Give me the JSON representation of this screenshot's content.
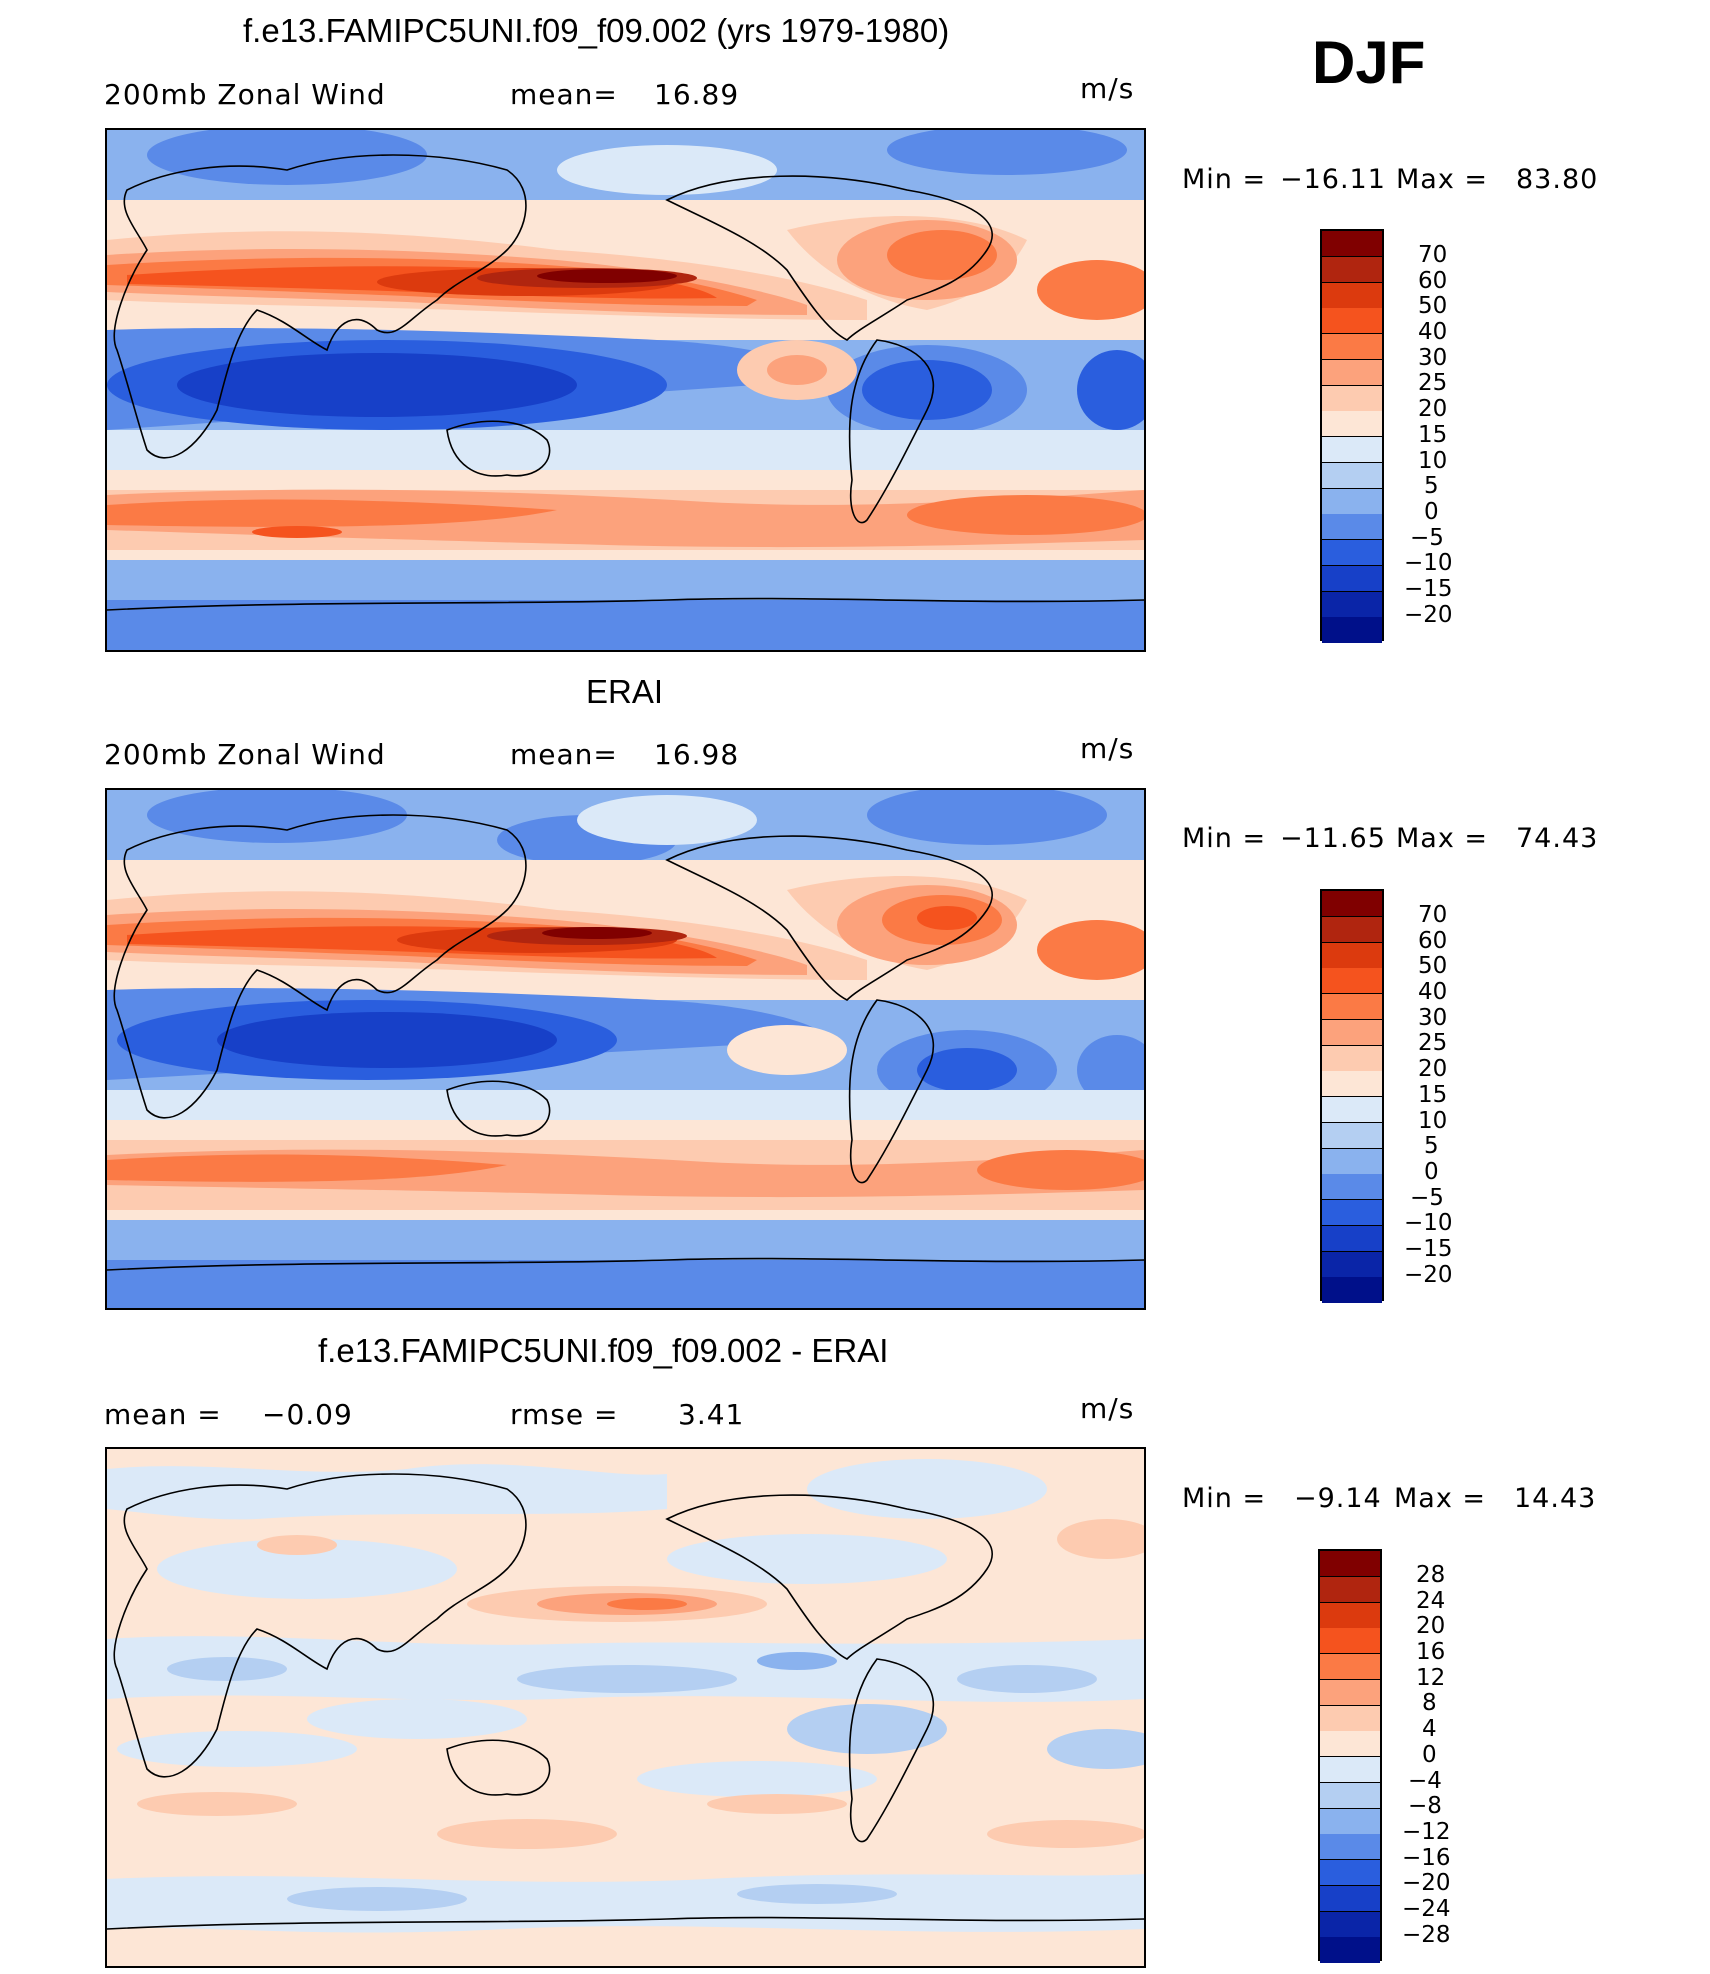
{
  "season": "DJF",
  "colors": {
    "c70": "#800000",
    "c60": "#b0250f",
    "c50": "#dc3a0e",
    "c40": "#f5531e",
    "c30": "#fb7a45",
    "c25": "#fca27c",
    "c20": "#fdcbb0",
    "c15": "#fde6d6",
    "c10": "#dbe9f8",
    "c5": "#b4cff2",
    "c0": "#8ab2ee",
    "cm5": "#5a8ae8",
    "cm10": "#2a5ede",
    "cm15": "#1740c8",
    "cm20": "#0a25a8",
    "cm25": "#00108a"
  },
  "panels": [
    {
      "title": "f.e13.FAMIPC5UNI.f09_f09.002 (yrs 1979-1980)",
      "left_label": "200mb Zonal Wind",
      "mid_label": "mean=",
      "mid_value": "16.89",
      "units": "m/s",
      "min_label": "Min =",
      "min_value": "−16.11",
      "max_label": "Max =",
      "max_value": "83.80",
      "colorbar_labels": [
        "70",
        "60",
        "50",
        "40",
        "30",
        "25",
        "20",
        "15",
        "10",
        "5",
        "0",
        "−5",
        "−10",
        "−15",
        "−20"
      ]
    },
    {
      "title": "ERAI",
      "left_label": "200mb Zonal Wind",
      "mid_label": "mean=",
      "mid_value": "16.98",
      "units": "m/s",
      "min_label": "Min =",
      "min_value": "−11.65",
      "max_label": "Max =",
      "max_value": "74.43",
      "colorbar_labels": [
        "70",
        "60",
        "50",
        "40",
        "30",
        "25",
        "20",
        "15",
        "10",
        "5",
        "0",
        "−5",
        "−10",
        "−15",
        "−20"
      ]
    },
    {
      "title": "f.e13.FAMIPC5UNI.f09_f09.002 - ERAI",
      "left_label": "mean =",
      "left_value": "−0.09",
      "mid_label": "rmse =",
      "mid_value": "3.41",
      "units": "m/s",
      "min_label": "Min =",
      "min_value": "−9.14",
      "max_label": "Max =",
      "max_value": "14.43",
      "colorbar_labels": [
        "28",
        "24",
        "20",
        "16",
        "12",
        "8",
        "4",
        "0",
        "−4",
        "−8",
        "−12",
        "−16",
        "−20",
        "−24",
        "−28"
      ]
    }
  ]
}
